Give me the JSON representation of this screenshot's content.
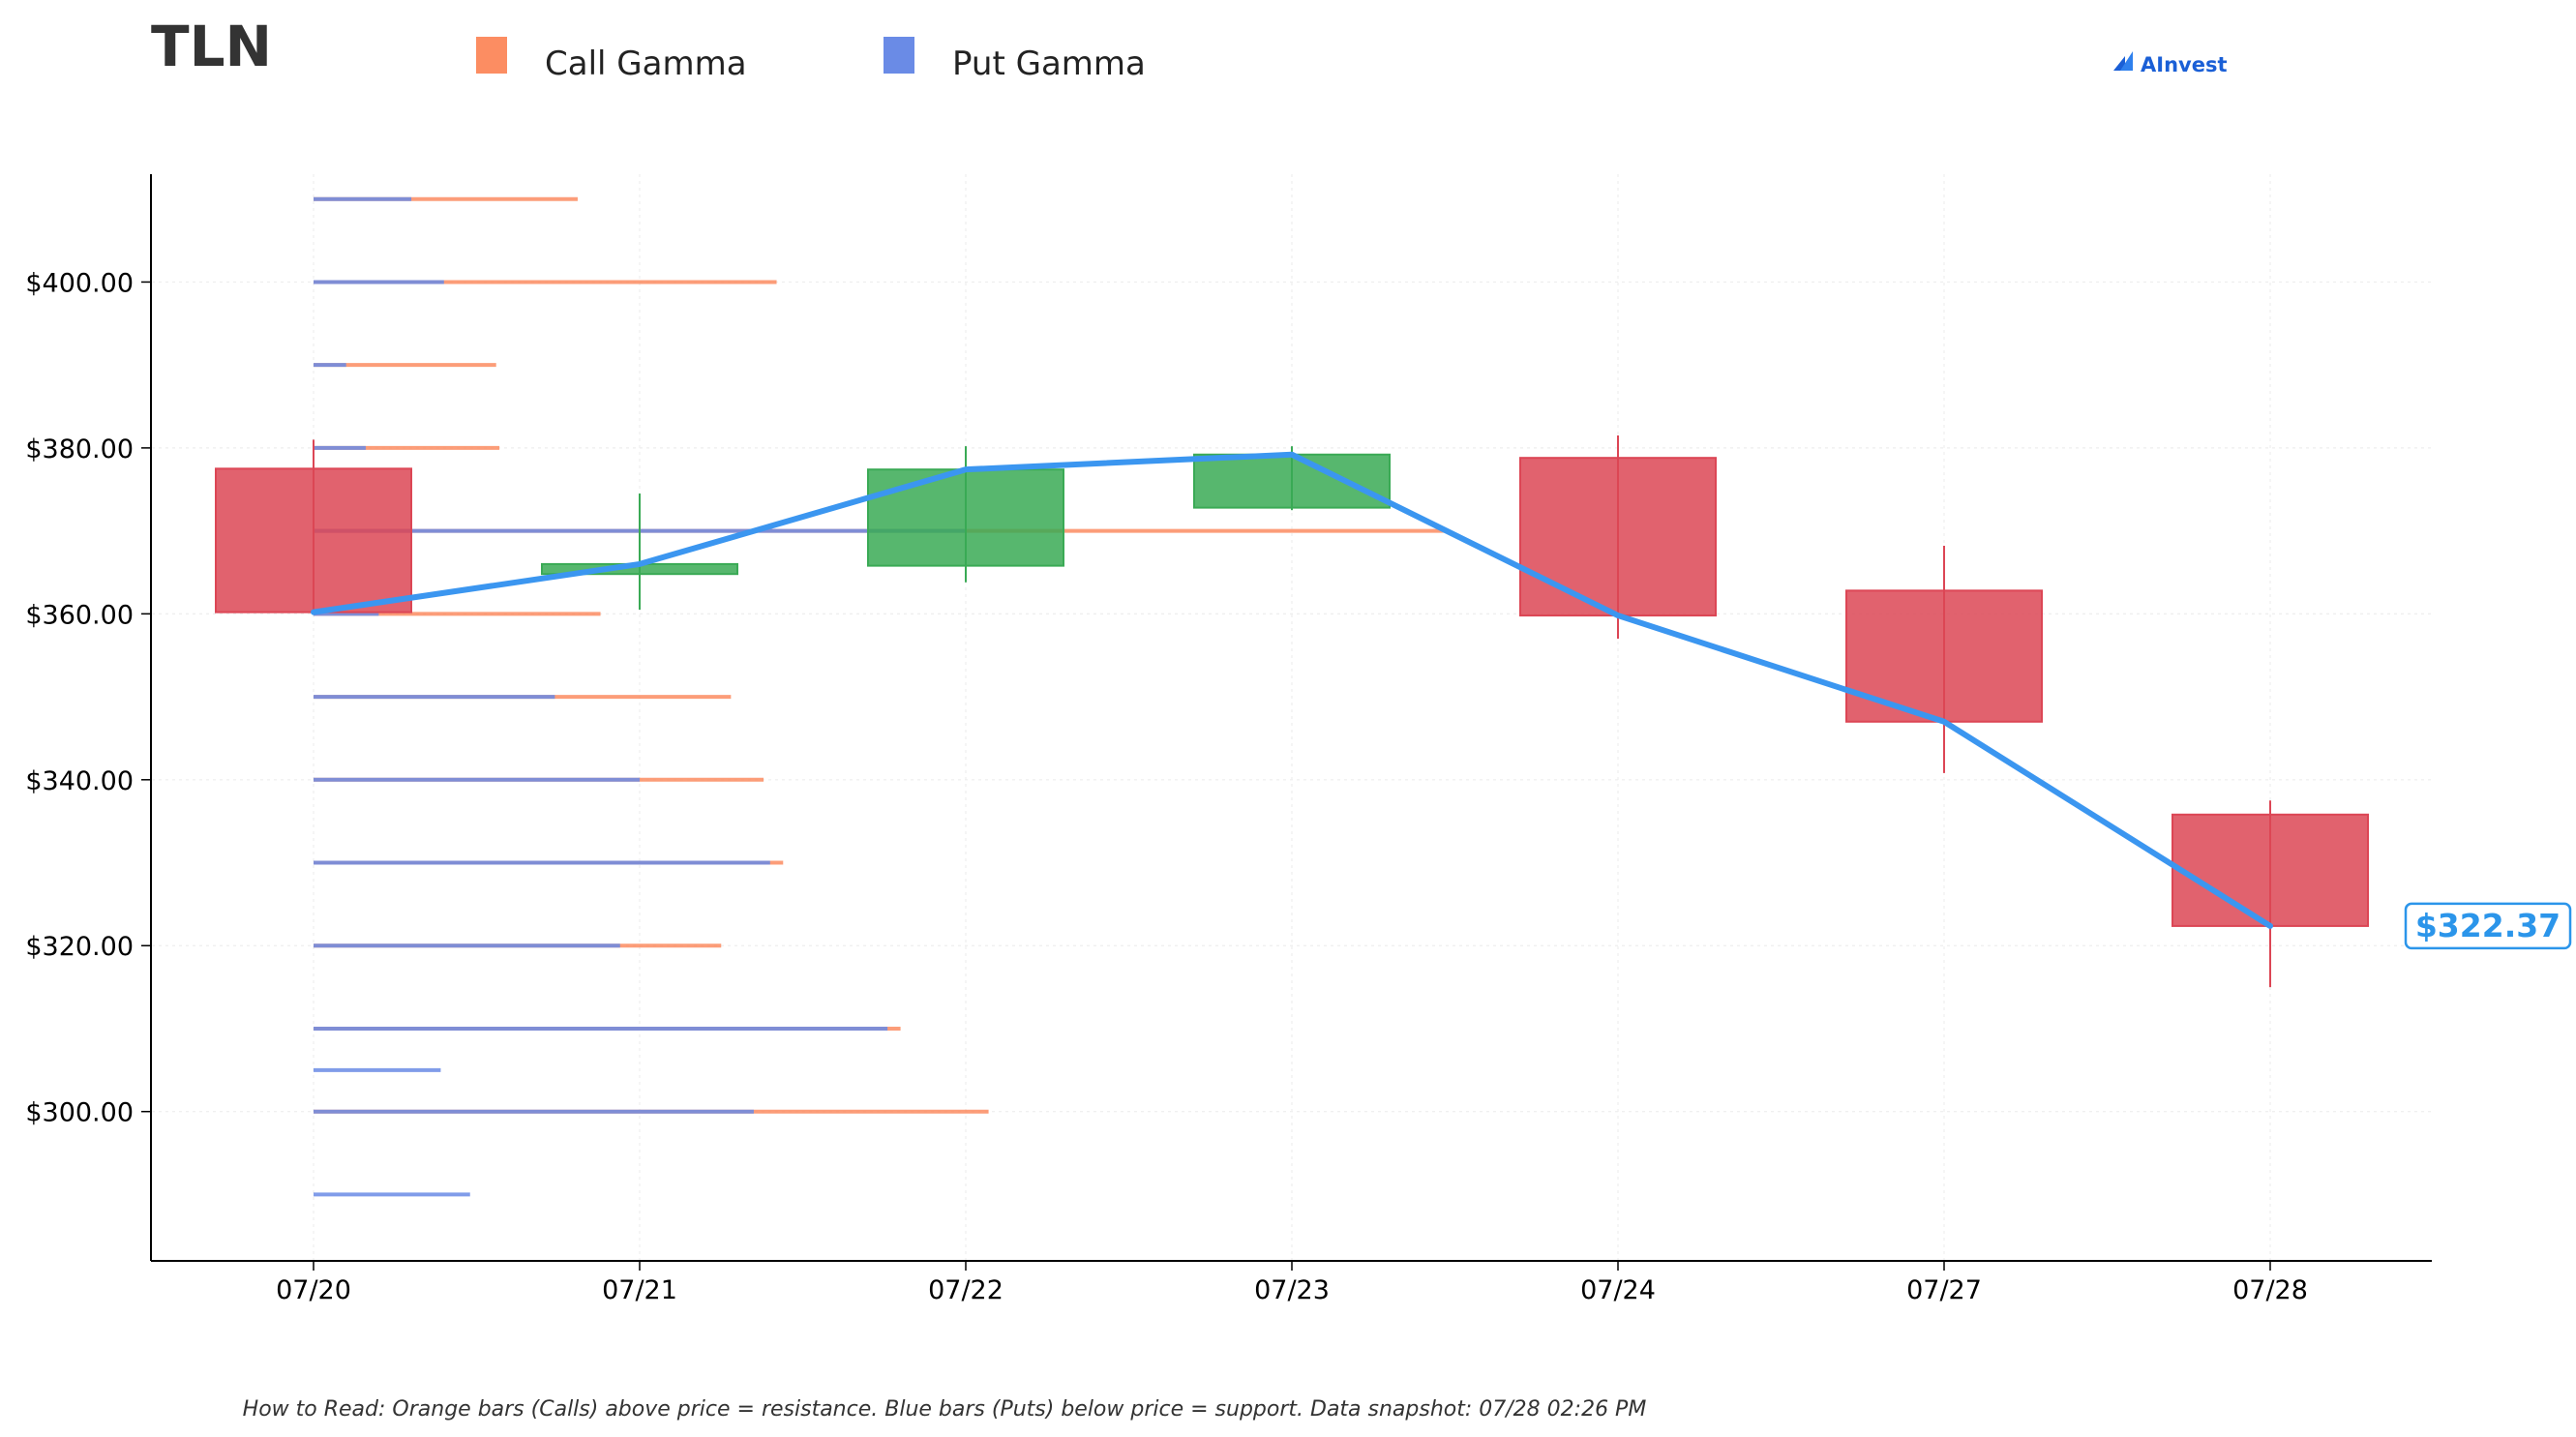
{
  "chart_data": {
    "type": "candlestick",
    "title": "TLN",
    "watermark": "AInvest",
    "footnote": "How to Read: Orange bars (Calls) above price = resistance. Blue bars (Puts) below price = support. Data snapshot: 07/28 02:26 PM",
    "legend": {
      "placement": "top",
      "items": [
        {
          "name": "Call Gamma",
          "color": "#fc8d62"
        },
        {
          "name": "Put Gamma",
          "color": "#6a8be6"
        }
      ]
    },
    "colors": {
      "up": "#3aaa55",
      "down": "#dc4655",
      "price_line": "#3b96f0",
      "grid": "#eeeeee"
    },
    "ylim": [
      282,
      413
    ],
    "y_ticks": [
      {
        "value": 300,
        "label": "$300.00"
      },
      {
        "value": 320,
        "label": "$320.00"
      },
      {
        "value": 340,
        "label": "$340.00"
      },
      {
        "value": 360,
        "label": "$360.00"
      },
      {
        "value": 380,
        "label": "$380.00"
      },
      {
        "value": 400,
        "label": "$400.00"
      }
    ],
    "categories": [
      "07/20",
      "07/21",
      "07/22",
      "07/23",
      "07/24",
      "07/27",
      "07/28"
    ],
    "ohlc": [
      {
        "date": "07/20",
        "open": 377.5,
        "high": 381.0,
        "low": 360.0,
        "close": 360.2
      },
      {
        "date": "07/21",
        "open": 364.8,
        "high": 374.5,
        "low": 360.5,
        "close": 366.0
      },
      {
        "date": "07/22",
        "open": 365.8,
        "high": 380.2,
        "low": 363.8,
        "close": 377.4
      },
      {
        "date": "07/23",
        "open": 372.8,
        "high": 380.2,
        "low": 372.5,
        "close": 379.2
      },
      {
        "date": "07/24",
        "open": 378.8,
        "high": 381.5,
        "low": 357.0,
        "close": 359.8
      },
      {
        "date": "07/27",
        "open": 362.8,
        "high": 368.2,
        "low": 340.8,
        "close": 347.0
      },
      {
        "date": "07/28",
        "open": 335.8,
        "high": 337.5,
        "low": 315.0,
        "close": 322.37
      }
    ],
    "last_price": 322.37,
    "last_price_label": "$322.37",
    "gamma_levels_note": "horizontal bar lengths in x-axis units (days) measured from 07/20",
    "gamma_levels": [
      {
        "strike": 410,
        "put": 0.3,
        "call": 0.81
      },
      {
        "strike": 400,
        "put": 0.4,
        "call": 1.42
      },
      {
        "strike": 390,
        "put": 0.1,
        "call": 0.56
      },
      {
        "strike": 380,
        "put": 0.16,
        "call": 0.57
      },
      {
        "strike": 370,
        "put": 2.0,
        "call": 3.48
      },
      {
        "strike": 360,
        "put": 0.2,
        "call": 0.88
      },
      {
        "strike": 350,
        "put": 0.74,
        "call": 1.28
      },
      {
        "strike": 340,
        "put": 1.0,
        "call": 1.38
      },
      {
        "strike": 330,
        "put": 1.4,
        "call": 1.44
      },
      {
        "strike": 320,
        "put": 0.94,
        "call": 1.25
      },
      {
        "strike": 310,
        "put": 1.76,
        "call": 1.8
      },
      {
        "strike": 305,
        "put": 0.39,
        "call": 0
      },
      {
        "strike": 300,
        "put": 1.35,
        "call": 2.07
      },
      {
        "strike": 290,
        "put": 0.48,
        "call": 0
      }
    ]
  }
}
